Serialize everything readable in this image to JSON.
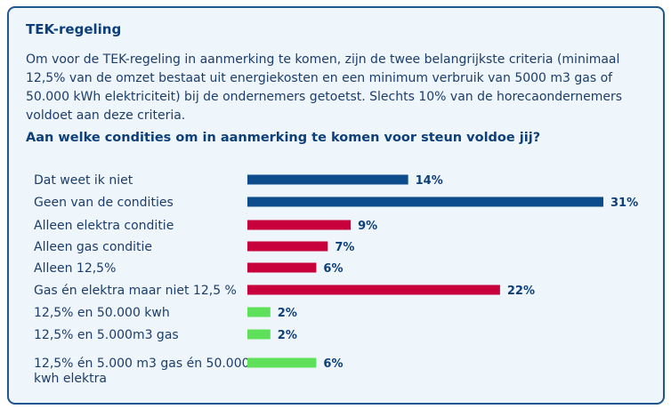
{
  "panel": {
    "title": "TEK-regeling",
    "intro": "Om voor de TEK-regeling in aanmerking te komen, zijn de twee belangrijkste criteria (minimaal 12,5% van de omzet bestaat uit energiekosten en een minimum verbruik van 5000 m3 gas of 50.000 kWh elektriciteit) bij de ondernemers getoetst. Slechts 10% van de horecaondernemers voldoet aan deze criteria.",
    "question": "Aan welke condities om in aanmerking te komen voor steun voldoe jij?"
  },
  "colors": {
    "border": "#1f5791",
    "background": "#eef6fb",
    "blue": "#0d4c8c",
    "red": "#c8003c",
    "green": "#5fe05a"
  },
  "chart_data": {
    "type": "bar",
    "orientation": "horizontal",
    "value_suffix": "%",
    "xlim": [
      0,
      31
    ],
    "grid": false,
    "categories": [
      "Dat weet ik niet",
      "Geen van de condities",
      "Alleen elektra conditie",
      "Alleen gas conditie",
      "Alleen 12,5%",
      "Gas én elektra maar niet 12,5 %",
      "12,5% en 50.000 kwh",
      "12,5% en 5.000m3 gas",
      "12,5% én 5.000 m3 gas én 50.000 kwh elektra"
    ],
    "values": [
      14,
      31,
      9,
      7,
      6,
      22,
      2,
      2,
      6
    ],
    "bar_colors": [
      "blue",
      "blue",
      "red",
      "red",
      "red",
      "red",
      "green",
      "green",
      "green"
    ]
  }
}
